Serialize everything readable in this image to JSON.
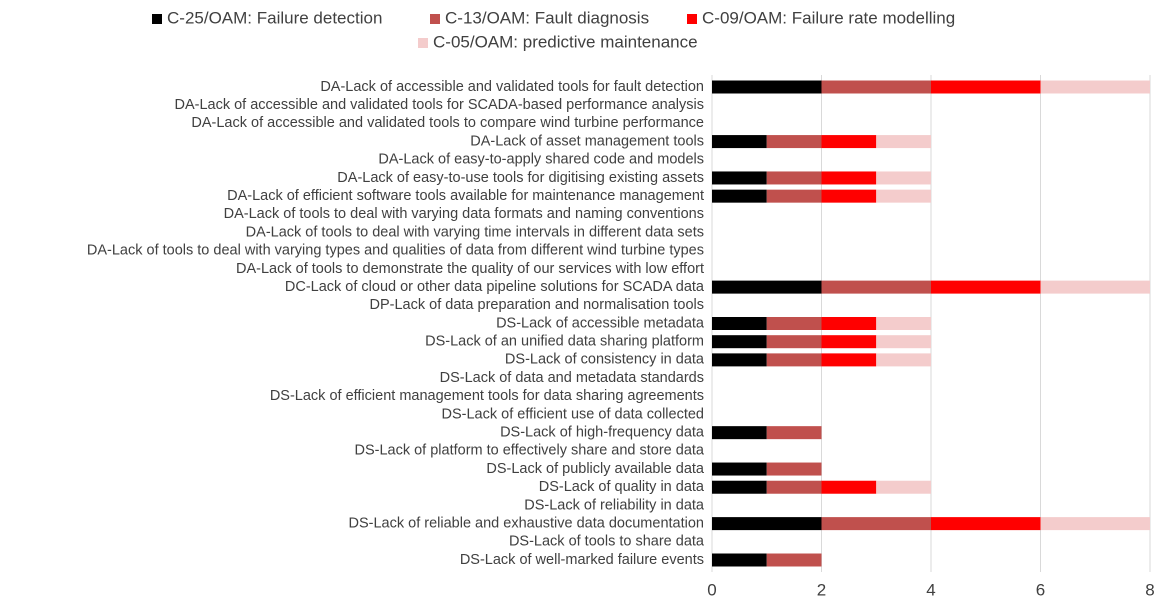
{
  "chart_data": {
    "type": "stacked_barh",
    "categories": [
      "DA-Lack of accessible and validated tools for fault detection",
      "DA-Lack of accessible and validated tools for SCADA-based performance analysis",
      "DA-Lack of accessible and validated tools to compare wind turbine performance",
      "DA-Lack of asset management tools",
      "DA-Lack of easy-to-apply shared code and models",
      "DA-Lack of easy-to-use tools for digitising existing assets",
      "DA-Lack of efficient software tools available for maintenance management",
      "DA-Lack of tools to deal with varying data formats and naming conventions",
      "DA-Lack of tools to deal with varying time intervals in different data sets",
      "DA-Lack of tools to deal with varying types and qualities of data from different wind turbine types",
      "DA-Lack of tools to demonstrate the quality of our services with low effort",
      "DC-Lack of cloud or other data pipeline solutions for SCADA data",
      "DP-Lack of data preparation and normalisation tools",
      "DS-Lack of accessible metadata",
      "DS-Lack of an unified data sharing platform",
      "DS-Lack of consistency in data",
      "DS-Lack of data and metadata standards",
      "DS-Lack of efficient management tools for data sharing agreements",
      "DS-Lack of efficient use of data collected",
      "DS-Lack of high-frequency data",
      "DS-Lack of platform to effectively share and store data",
      "DS-Lack of publicly available data",
      "DS-Lack of quality in data",
      "DS-Lack of reliability in data",
      "DS-Lack of reliable and exhaustive data documentation",
      "DS-Lack of tools to share data",
      "DS-Lack of well-marked failure events"
    ],
    "series": [
      {
        "name": "C-25/OAM: Failure detection",
        "color": "#000000",
        "values": [
          2,
          0,
          0,
          1,
          0,
          1,
          1,
          0,
          0,
          0,
          0,
          2,
          0,
          1,
          1,
          1,
          0,
          0,
          0,
          1,
          0,
          1,
          1,
          0,
          2,
          0,
          1
        ]
      },
      {
        "name": "C-13/OAM: Fault diagnosis",
        "color": "#c0504d",
        "values": [
          2,
          0,
          0,
          1,
          0,
          1,
          1,
          0,
          0,
          0,
          0,
          2,
          0,
          1,
          1,
          1,
          0,
          0,
          0,
          1,
          0,
          1,
          1,
          0,
          2,
          0,
          1
        ]
      },
      {
        "name": "C-09/OAM: Failure rate modelling",
        "color": "#ff0000",
        "values": [
          2,
          0,
          0,
          1,
          0,
          1,
          1,
          0,
          0,
          0,
          0,
          2,
          0,
          1,
          1,
          1,
          0,
          0,
          0,
          0,
          0,
          0,
          1,
          0,
          2,
          0,
          0
        ]
      },
      {
        "name": "C-05/OAM: predictive maintenance",
        "color": "#f4cccc",
        "values": [
          2,
          0,
          0,
          1,
          0,
          1,
          1,
          0,
          0,
          0,
          0,
          2,
          0,
          1,
          1,
          1,
          0,
          0,
          0,
          0,
          0,
          0,
          1,
          0,
          2,
          0,
          0
        ]
      }
    ],
    "xlim": [
      0,
      8
    ],
    "xticks": [
      0,
      2,
      4,
      6,
      8
    ],
    "grid": true,
    "legend": "top"
  }
}
